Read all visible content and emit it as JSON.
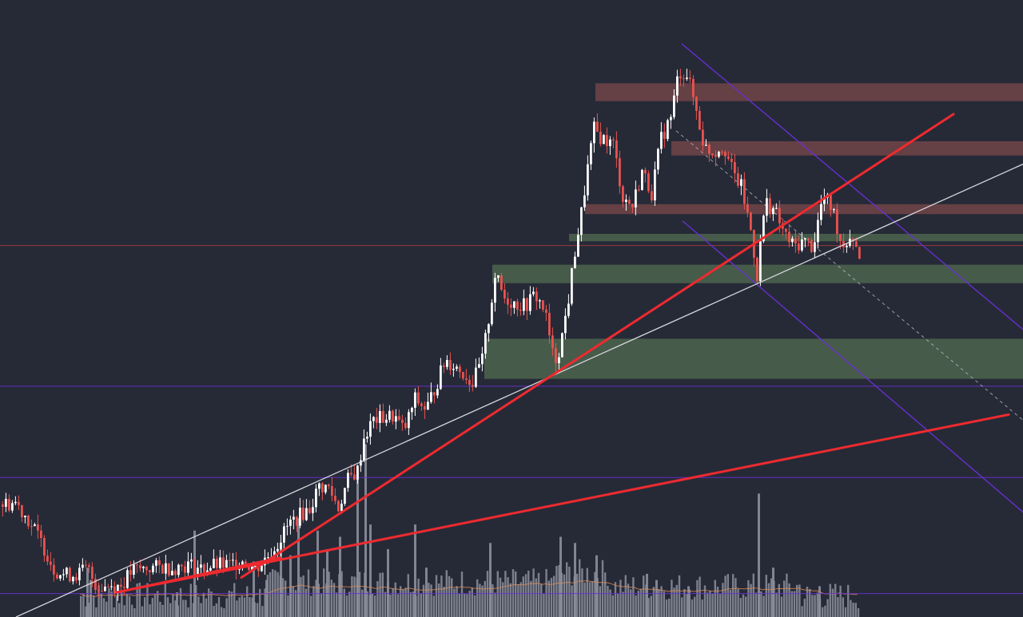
{
  "chart_data": {
    "type": "candlestick",
    "title": "",
    "xlabel": "",
    "ylabel": "",
    "x_range": [
      0,
      1280
    ],
    "y_range": [
      0,
      100
    ],
    "grid": false,
    "legend": "none",
    "colors": {
      "background": "#262a37",
      "up_candle": "#ffffff",
      "down_candle": "#e8534f",
      "volume": "#8c8f9b",
      "volume_ma": "#d98d5b",
      "resistance_zone": "#6e4348",
      "support_zone": "#4d644d",
      "trendline_red": "#ee2a2f",
      "trendline_white": "#d6d6dc",
      "channel": "#6a2fd6",
      "level_red": "#b63c3c",
      "level_purple": "#6a2fd6"
    },
    "price_path": [
      [
        0,
        18.2
      ],
      [
        18,
        18.6
      ],
      [
        32,
        16.2
      ],
      [
        44,
        13.6
      ],
      [
        56,
        10.7
      ],
      [
        66,
        7.8
      ],
      [
        80,
        6.8
      ],
      [
        96,
        7.0
      ],
      [
        108,
        7.9
      ],
      [
        120,
        4.9
      ],
      [
        134,
        5.1
      ],
      [
        150,
        5.1
      ],
      [
        164,
        7.5
      ],
      [
        182,
        7.9
      ],
      [
        200,
        8.1
      ],
      [
        216,
        8.0
      ],
      [
        234,
        8.5
      ],
      [
        250,
        7.8
      ],
      [
        268,
        8.4
      ],
      [
        286,
        8.4
      ],
      [
        302,
        9.3
      ],
      [
        318,
        7.8
      ],
      [
        332,
        9.6
      ],
      [
        346,
        12.0
      ],
      [
        360,
        15.0
      ],
      [
        372,
        16.3
      ],
      [
        386,
        17.6
      ],
      [
        398,
        21.2
      ],
      [
        410,
        20.9
      ],
      [
        422,
        17.7
      ],
      [
        434,
        22.2
      ],
      [
        446,
        23.7
      ],
      [
        454,
        29.1
      ],
      [
        466,
        31.9
      ],
      [
        478,
        32.3
      ],
      [
        492,
        32.6
      ],
      [
        504,
        30.1
      ],
      [
        518,
        35.3
      ],
      [
        532,
        33.6
      ],
      [
        546,
        38.2
      ],
      [
        556,
        41.7
      ],
      [
        566,
        40.9
      ],
      [
        578,
        39.6
      ],
      [
        590,
        37.9
      ],
      [
        602,
        41.7
      ],
      [
        612,
        49.8
      ],
      [
        618,
        55.4
      ],
      [
        630,
        51.7
      ],
      [
        642,
        50.9
      ],
      [
        656,
        50.4
      ],
      [
        668,
        52.3
      ],
      [
        680,
        49.8
      ],
      [
        692,
        41.1
      ],
      [
        700,
        44.1
      ],
      [
        710,
        51.6
      ],
      [
        718,
        59.3
      ],
      [
        726,
        65.4
      ],
      [
        734,
        72.8
      ],
      [
        742,
        79.0
      ],
      [
        752,
        77.6
      ],
      [
        766,
        76.6
      ],
      [
        778,
        68.0
      ],
      [
        790,
        66.6
      ],
      [
        802,
        72.2
      ],
      [
        814,
        68.8
      ],
      [
        826,
        77.6
      ],
      [
        838,
        81.0
      ],
      [
        848,
        88.4
      ],
      [
        858,
        88.0
      ],
      [
        868,
        83.2
      ],
      [
        880,
        76.1
      ],
      [
        892,
        75.3
      ],
      [
        904,
        76.6
      ],
      [
        916,
        71.8
      ],
      [
        926,
        69.7
      ],
      [
        938,
        62.7
      ],
      [
        946,
        55.4
      ],
      [
        956,
        67.4
      ],
      [
        968,
        65.8
      ],
      [
        980,
        62.0
      ],
      [
        992,
        60.0
      ],
      [
        1004,
        61.0
      ],
      [
        1016,
        60.0
      ],
      [
        1028,
        68.1
      ],
      [
        1040,
        66.3
      ],
      [
        1052,
        60.1
      ],
      [
        1064,
        62.1
      ],
      [
        1076,
        58.2
      ]
    ],
    "volume_bars": [
      [
        108,
        8
      ],
      [
        112,
        6
      ],
      [
        220,
        4
      ],
      [
        242,
        14
      ],
      [
        316,
        9
      ],
      [
        332,
        6
      ],
      [
        350,
        12
      ],
      [
        362,
        10
      ],
      [
        372,
        16
      ],
      [
        396,
        14
      ],
      [
        408,
        11
      ],
      [
        424,
        13
      ],
      [
        446,
        24
      ],
      [
        456,
        28
      ],
      [
        462,
        15
      ],
      [
        484,
        11
      ],
      [
        518,
        15
      ],
      [
        532,
        8
      ],
      [
        612,
        12
      ],
      [
        700,
        13
      ],
      [
        718,
        12
      ],
      [
        745,
        10
      ],
      [
        808,
        7
      ],
      [
        820,
        6
      ],
      [
        860,
        5
      ],
      [
        948,
        20
      ],
      [
        966,
        8
      ],
      [
        1024,
        5
      ]
    ],
    "resistance_zones": [
      [
        745,
        1280,
        86.5,
        83.6
      ],
      [
        840,
        1280,
        77.1,
        74.8
      ],
      [
        732,
        1280,
        66.9,
        65.3
      ]
    ],
    "support_zones": [
      [
        712,
        1280,
        62.1,
        60.9
      ],
      [
        616,
        1280,
        57.1,
        54.1
      ],
      [
        606,
        1280,
        45.1,
        38.6
      ]
    ],
    "trendlines_red": [
      [
        [
          146,
          4.0
        ],
        [
          350,
          9.6
        ]
      ],
      [
        [
          302,
          6.4
        ],
        [
          1193,
          81.5
        ]
      ],
      [
        [
          146,
          4.0
        ],
        [
          1262,
          32.8
        ]
      ]
    ],
    "trendline_white": [
      [
        20,
        0.0
      ],
      [
        1280,
        73.4
      ]
    ],
    "channel_lines": [
      [
        [
          853,
          92.9
        ],
        [
          1280,
          46.6
        ]
      ],
      [
        [
          854,
          64.2
        ],
        [
          1280,
          17.0
        ]
      ]
    ],
    "channel_midline": [
      [
        846,
        78.8
      ],
      [
        1280,
        31.9
      ]
    ],
    "horizontal_levels": [
      {
        "y": 60.2,
        "kind": "red"
      },
      {
        "y": 37.4,
        "kind": "purple"
      },
      {
        "y": 22.6,
        "kind": "purple"
      },
      {
        "y": 3.8,
        "kind": "purple"
      }
    ]
  }
}
